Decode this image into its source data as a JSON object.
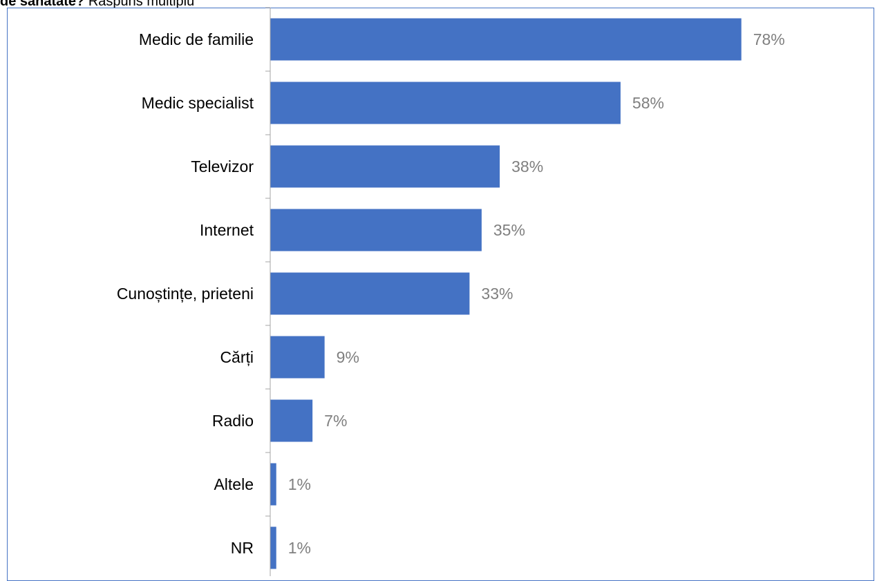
{
  "title": {
    "bold": "de sănătate?",
    "rest": " Răspuns multiplu"
  },
  "colors": {
    "bar": "#4472c4",
    "axis": "#a6a6a6",
    "label": "#7f7f7f",
    "frame": "#4472c4"
  },
  "chart_data": {
    "type": "bar",
    "orientation": "horizontal",
    "categories": [
      "Medic de familie",
      "Medic specialist",
      "Televizor",
      "Internet",
      "Cunoștințe, prieteni",
      "Cărți",
      "Radio",
      "Altele",
      "NR"
    ],
    "values": [
      78,
      58,
      38,
      35,
      33,
      9,
      7,
      1,
      1
    ],
    "data_labels": [
      "78%",
      "58%",
      "38%",
      "35%",
      "33%",
      "9%",
      "7%",
      "1%",
      "1%"
    ],
    "unit": "%",
    "xlim": [
      0,
      100
    ],
    "grid": false,
    "legend": "none"
  }
}
